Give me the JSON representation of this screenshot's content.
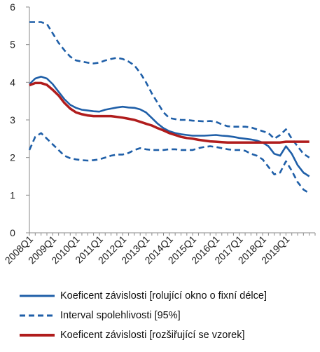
{
  "chart_data": {
    "type": "line",
    "title": "",
    "xlabel": "",
    "ylabel": "",
    "ylim": [
      0,
      6
    ],
    "yticks": [
      0,
      1,
      2,
      3,
      4,
      5,
      6
    ],
    "x_start": 2008.0,
    "x_end": 2020.25,
    "xticks": [
      {
        "label": "2008Q1",
        "x": 2008.0
      },
      {
        "label": "2009Q1",
        "x": 2009.0
      },
      {
        "label": "2010Q1",
        "x": 2010.0
      },
      {
        "label": "2011Q1",
        "x": 2011.0
      },
      {
        "label": "2012Q1",
        "x": 2012.0
      },
      {
        "label": "2013Q1",
        "x": 2013.0
      },
      {
        "label": "2014Q1",
        "x": 2014.0
      },
      {
        "label": "2015Q1",
        "x": 2015.0
      },
      {
        "label": "2016Q1",
        "x": 2016.0
      },
      {
        "label": "2017Q1",
        "x": 2017.0
      },
      {
        "label": "2018Q1",
        "x": 2018.0
      },
      {
        "label": "2019Q1",
        "x": 2019.0
      }
    ],
    "grid": false,
    "legend_position": "bottom",
    "series": [
      {
        "name": "Koeficent závislosti [rolující okno o fixní délce]",
        "color": "#1f5fa8",
        "style": "solid",
        "points": [
          [
            2008.0,
            3.95
          ],
          [
            2008.25,
            4.1
          ],
          [
            2008.5,
            4.15
          ],
          [
            2008.75,
            4.1
          ],
          [
            2009.0,
            3.95
          ],
          [
            2009.25,
            3.75
          ],
          [
            2009.5,
            3.55
          ],
          [
            2009.75,
            3.4
          ],
          [
            2010.0,
            3.32
          ],
          [
            2010.25,
            3.27
          ],
          [
            2010.5,
            3.25
          ],
          [
            2010.75,
            3.23
          ],
          [
            2011.0,
            3.22
          ],
          [
            2011.25,
            3.27
          ],
          [
            2011.5,
            3.3
          ],
          [
            2011.75,
            3.33
          ],
          [
            2012.0,
            3.35
          ],
          [
            2012.25,
            3.33
          ],
          [
            2012.5,
            3.32
          ],
          [
            2012.75,
            3.28
          ],
          [
            2013.0,
            3.2
          ],
          [
            2013.25,
            3.05
          ],
          [
            2013.5,
            2.9
          ],
          [
            2013.75,
            2.78
          ],
          [
            2014.0,
            2.7
          ],
          [
            2014.25,
            2.65
          ],
          [
            2014.5,
            2.62
          ],
          [
            2014.75,
            2.6
          ],
          [
            2015.0,
            2.58
          ],
          [
            2015.25,
            2.58
          ],
          [
            2015.5,
            2.58
          ],
          [
            2015.75,
            2.59
          ],
          [
            2016.0,
            2.6
          ],
          [
            2016.25,
            2.58
          ],
          [
            2016.5,
            2.57
          ],
          [
            2016.75,
            2.55
          ],
          [
            2017.0,
            2.52
          ],
          [
            2017.25,
            2.5
          ],
          [
            2017.5,
            2.48
          ],
          [
            2017.75,
            2.45
          ],
          [
            2018.0,
            2.4
          ],
          [
            2018.25,
            2.3
          ],
          [
            2018.5,
            2.1
          ],
          [
            2018.75,
            2.05
          ],
          [
            2019.0,
            2.3
          ],
          [
            2019.25,
            2.1
          ],
          [
            2019.5,
            1.8
          ],
          [
            2019.75,
            1.6
          ],
          [
            2020.0,
            1.5
          ]
        ]
      },
      {
        "name": "Interval spolehlivosti [95%]",
        "color": "#1f5fa8",
        "style": "dashed",
        "points": [
          [
            2008.0,
            5.6
          ],
          [
            2008.25,
            5.6
          ],
          [
            2008.5,
            5.6
          ],
          [
            2008.75,
            5.55
          ],
          [
            2009.0,
            5.3
          ],
          [
            2009.25,
            5.05
          ],
          [
            2009.5,
            4.85
          ],
          [
            2009.75,
            4.68
          ],
          [
            2010.0,
            4.58
          ],
          [
            2010.25,
            4.55
          ],
          [
            2010.5,
            4.52
          ],
          [
            2010.75,
            4.5
          ],
          [
            2011.0,
            4.52
          ],
          [
            2011.25,
            4.58
          ],
          [
            2011.5,
            4.62
          ],
          [
            2011.75,
            4.65
          ],
          [
            2012.0,
            4.62
          ],
          [
            2012.25,
            4.55
          ],
          [
            2012.5,
            4.45
          ],
          [
            2012.75,
            4.25
          ],
          [
            2013.0,
            4.0
          ],
          [
            2013.25,
            3.7
          ],
          [
            2013.5,
            3.45
          ],
          [
            2013.75,
            3.2
          ],
          [
            2014.0,
            3.05
          ],
          [
            2014.25,
            3.02
          ],
          [
            2014.5,
            3.0
          ],
          [
            2014.75,
            3.0
          ],
          [
            2015.0,
            2.98
          ],
          [
            2015.25,
            2.97
          ],
          [
            2015.5,
            2.96
          ],
          [
            2015.75,
            2.97
          ],
          [
            2016.0,
            2.95
          ],
          [
            2016.25,
            2.88
          ],
          [
            2016.5,
            2.83
          ],
          [
            2016.75,
            2.82
          ],
          [
            2017.0,
            2.82
          ],
          [
            2017.25,
            2.82
          ],
          [
            2017.5,
            2.8
          ],
          [
            2017.75,
            2.75
          ],
          [
            2018.0,
            2.7
          ],
          [
            2018.25,
            2.65
          ],
          [
            2018.5,
            2.5
          ],
          [
            2018.75,
            2.6
          ],
          [
            2019.0,
            2.75
          ],
          [
            2019.25,
            2.5
          ],
          [
            2019.5,
            2.3
          ],
          [
            2019.75,
            2.1
          ],
          [
            2020.0,
            2.0
          ]
        ]
      },
      {
        "name": "",
        "color": "#1f5fa8",
        "style": "dashed",
        "points": [
          [
            2008.0,
            2.2
          ],
          [
            2008.25,
            2.55
          ],
          [
            2008.5,
            2.65
          ],
          [
            2008.75,
            2.5
          ],
          [
            2009.0,
            2.35
          ],
          [
            2009.25,
            2.2
          ],
          [
            2009.5,
            2.05
          ],
          [
            2009.75,
            1.98
          ],
          [
            2010.0,
            1.95
          ],
          [
            2010.25,
            1.93
          ],
          [
            2010.5,
            1.92
          ],
          [
            2010.75,
            1.93
          ],
          [
            2011.0,
            1.95
          ],
          [
            2011.25,
            2.0
          ],
          [
            2011.5,
            2.05
          ],
          [
            2011.75,
            2.08
          ],
          [
            2012.0,
            2.08
          ],
          [
            2012.25,
            2.12
          ],
          [
            2012.5,
            2.2
          ],
          [
            2012.75,
            2.25
          ],
          [
            2013.0,
            2.22
          ],
          [
            2013.25,
            2.2
          ],
          [
            2013.5,
            2.2
          ],
          [
            2013.75,
            2.2
          ],
          [
            2014.0,
            2.22
          ],
          [
            2014.25,
            2.22
          ],
          [
            2014.5,
            2.2
          ],
          [
            2014.75,
            2.2
          ],
          [
            2015.0,
            2.2
          ],
          [
            2015.25,
            2.25
          ],
          [
            2015.5,
            2.28
          ],
          [
            2015.75,
            2.3
          ],
          [
            2016.0,
            2.28
          ],
          [
            2016.25,
            2.25
          ],
          [
            2016.5,
            2.22
          ],
          [
            2016.75,
            2.2
          ],
          [
            2017.0,
            2.2
          ],
          [
            2017.25,
            2.18
          ],
          [
            2017.5,
            2.1
          ],
          [
            2017.75,
            2.05
          ],
          [
            2018.0,
            1.95
          ],
          [
            2018.25,
            1.75
          ],
          [
            2018.5,
            1.55
          ],
          [
            2018.75,
            1.6
          ],
          [
            2019.0,
            1.9
          ],
          [
            2019.25,
            1.65
          ],
          [
            2019.5,
            1.35
          ],
          [
            2019.75,
            1.15
          ],
          [
            2020.0,
            1.05
          ]
        ]
      },
      {
        "name": "Koeficent závislosti [rozšiřující se vzorek]",
        "color": "#b01c1c",
        "style": "solid",
        "points": [
          [
            2008.0,
            3.92
          ],
          [
            2008.25,
            3.98
          ],
          [
            2008.5,
            3.98
          ],
          [
            2008.75,
            3.93
          ],
          [
            2009.0,
            3.8
          ],
          [
            2009.25,
            3.65
          ],
          [
            2009.5,
            3.45
          ],
          [
            2009.75,
            3.3
          ],
          [
            2010.0,
            3.2
          ],
          [
            2010.25,
            3.15
          ],
          [
            2010.5,
            3.12
          ],
          [
            2010.75,
            3.1
          ],
          [
            2011.0,
            3.1
          ],
          [
            2011.25,
            3.1
          ],
          [
            2011.5,
            3.1
          ],
          [
            2011.75,
            3.08
          ],
          [
            2012.0,
            3.06
          ],
          [
            2012.25,
            3.03
          ],
          [
            2012.5,
            3.0
          ],
          [
            2012.75,
            2.95
          ],
          [
            2013.0,
            2.9
          ],
          [
            2013.25,
            2.85
          ],
          [
            2013.5,
            2.78
          ],
          [
            2013.75,
            2.72
          ],
          [
            2014.0,
            2.65
          ],
          [
            2014.25,
            2.6
          ],
          [
            2014.5,
            2.55
          ],
          [
            2014.75,
            2.52
          ],
          [
            2015.0,
            2.5
          ],
          [
            2015.25,
            2.47
          ],
          [
            2015.5,
            2.45
          ],
          [
            2015.75,
            2.43
          ],
          [
            2016.0,
            2.42
          ],
          [
            2016.25,
            2.41
          ],
          [
            2016.5,
            2.4
          ],
          [
            2016.75,
            2.4
          ],
          [
            2017.0,
            2.4
          ],
          [
            2017.25,
            2.4
          ],
          [
            2017.5,
            2.4
          ],
          [
            2017.75,
            2.4
          ],
          [
            2018.0,
            2.4
          ],
          [
            2018.25,
            2.4
          ],
          [
            2018.5,
            2.4
          ],
          [
            2018.75,
            2.4
          ],
          [
            2019.0,
            2.42
          ],
          [
            2019.25,
            2.42
          ],
          [
            2019.5,
            2.42
          ],
          [
            2019.75,
            2.42
          ],
          [
            2020.0,
            2.42
          ]
        ]
      }
    ]
  },
  "legend": {
    "items": [
      {
        "label": "Koeficent závislosti [rolující okno o fixní délce]",
        "color": "#1f5fa8",
        "style": "solid"
      },
      {
        "label": "Interval spolehlivosti [95%]",
        "color": "#1f5fa8",
        "style": "dashed"
      },
      {
        "label": "Koeficent závislosti [rozšiřující se vzorek]",
        "color": "#b01c1c",
        "style": "solid"
      }
    ]
  }
}
